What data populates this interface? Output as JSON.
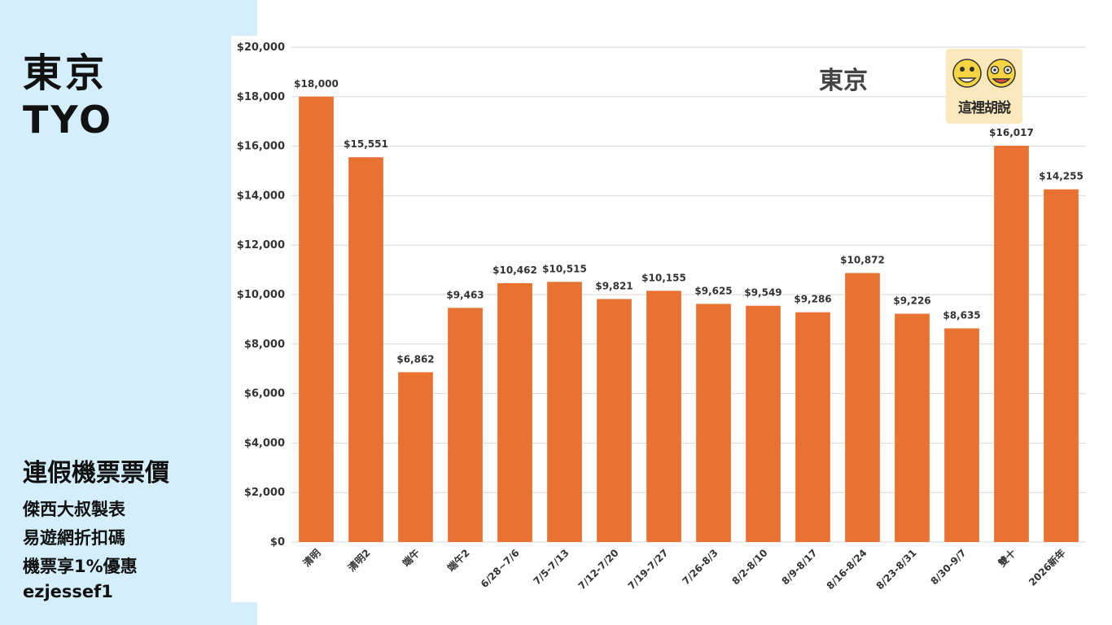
{
  "left_panel": {
    "city_name": "東京",
    "city_code": "TYO",
    "subtitle": "連假機票票價",
    "lines": [
      "傑西大叔製表",
      "易遊網折扣碼",
      "機票享1%優惠",
      "ezjessef1"
    ]
  },
  "logo": {
    "text": "這裡胡說"
  },
  "colors": {
    "bar": "#e97131",
    "panel": "#d4effb",
    "grid": "#d9d9d9"
  },
  "chart_data": {
    "type": "bar",
    "title": "東京",
    "xlabel": "",
    "ylabel": "",
    "ylim": [
      0,
      20000
    ],
    "yticks": [
      0,
      2000,
      4000,
      6000,
      8000,
      10000,
      12000,
      14000,
      16000,
      18000,
      20000
    ],
    "ytick_labels": [
      "$0",
      "$2,000",
      "$4,000",
      "$6,000",
      "$8,000",
      "$10,000",
      "$12,000",
      "$14,000",
      "$16,000",
      "$18,000",
      "$20,000"
    ],
    "grid": true,
    "categories": [
      "清明",
      "清明2",
      "端午",
      "端午2",
      "6/28~7/6",
      "7/5-7/13",
      "7/12-7/20",
      "7/19-7/27",
      "7/26-8/3",
      "8/2-8/10",
      "8/9-8/17",
      "8/16-8/24",
      "8/23-8/31",
      "8/30-9/7",
      "雙十",
      "2026新年"
    ],
    "values": [
      18000,
      15551,
      6862,
      9463,
      10462,
      10515,
      9821,
      10155,
      9625,
      9549,
      9286,
      10872,
      9226,
      8635,
      16017,
      14255
    ],
    "data_labels": [
      "$18,000",
      "$15,551",
      "$6,862",
      "$9,463",
      "$10,462",
      "$10,515",
      "$9,821",
      "$10,155",
      "$9,625",
      "$9,549",
      "$9,286",
      "$10,872",
      "$9,226",
      "$8,635",
      "$16,017",
      "$14,255"
    ]
  }
}
